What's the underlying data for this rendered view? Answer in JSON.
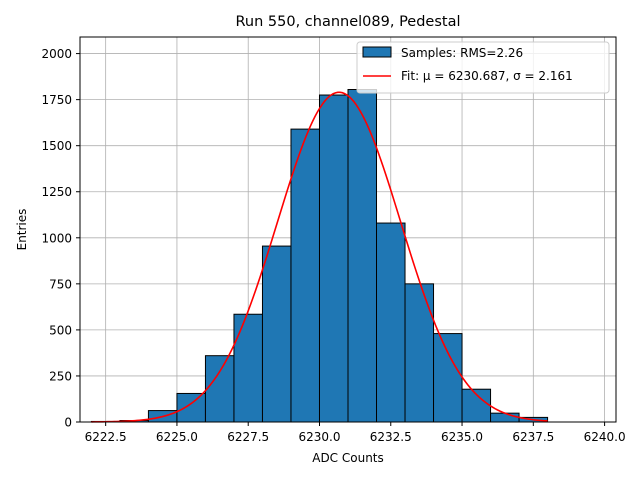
{
  "chart_data": {
    "type": "bar",
    "title": "Run 550, channel089, Pedestal",
    "xlabel": "ADC Counts",
    "ylabel": "Entries",
    "xlim": [
      6221.6,
      6240.4
    ],
    "ylim": [
      0,
      2090
    ],
    "xticks": [
      6222.5,
      6225.0,
      6227.5,
      6230.0,
      6232.5,
      6235.0,
      6237.5,
      6240.0
    ],
    "xtick_labels": [
      "6222.5",
      "6225.0",
      "6227.5",
      "6230.0",
      "6232.5",
      "6235.0",
      "6237.5",
      "6240.0"
    ],
    "yticks": [
      0,
      250,
      500,
      750,
      1000,
      1250,
      1500,
      1750,
      2000
    ],
    "ytick_labels": [
      "0",
      "250",
      "500",
      "750",
      "1000",
      "1250",
      "1500",
      "1750",
      "2000"
    ],
    "grid": true,
    "legend_position": "top-right",
    "histogram": {
      "name": "Samples: RMS=2.26",
      "bin_edges": [
        6222,
        6223,
        6224,
        6225,
        6226,
        6227,
        6228,
        6229,
        6230,
        6231,
        6232,
        6233,
        6234,
        6235,
        6236,
        6237,
        6238
      ],
      "counts": [
        3,
        8,
        62,
        155,
        360,
        585,
        955,
        1590,
        1775,
        1805,
        1080,
        750,
        480,
        178,
        48,
        25
      ],
      "color": "#1f77b4",
      "edge_color": "#000000"
    },
    "fit": {
      "name": "Fit: μ = 6230.687, σ = 2.161",
      "mu": 6230.687,
      "sigma": 2.161,
      "peak": 1790,
      "x_range": [
        6222,
        6238
      ],
      "color": "#ff0000"
    }
  }
}
